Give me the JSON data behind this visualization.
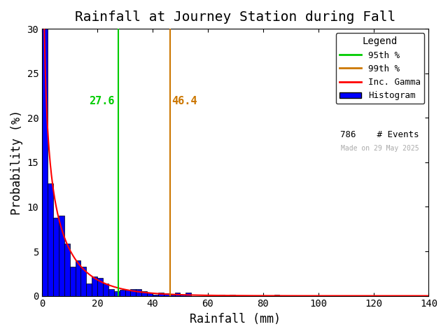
{
  "title": "Rainfall at Journey Station during Fall",
  "xlabel": "Rainfall (mm)",
  "ylabel": "Probability (%)",
  "xlim": [
    0,
    140
  ],
  "ylim": [
    0,
    30
  ],
  "xticks": [
    0,
    20,
    40,
    60,
    80,
    100,
    120,
    140
  ],
  "yticks": [
    0,
    5,
    10,
    15,
    20,
    25,
    30
  ],
  "pct95": 27.6,
  "pct99": 46.4,
  "pct95_color": "#00cc00",
  "pct99_color": "#cc7700",
  "gamma_color": "#ff0000",
  "hist_color": "#0000ff",
  "hist_edge_color": "#000000",
  "n_events": 786,
  "gamma_shape": 0.72,
  "gamma_scale": 9.5,
  "watermark": "Made on 29 May 2025",
  "watermark_color": "#aaaaaa",
  "legend_title": "Legend",
  "legend_entries": [
    "95th %",
    "99th %",
    "Inc. Gamma",
    "Histogram",
    "786    # Events"
  ],
  "background_color": "#ffffff",
  "title_fontsize": 14,
  "axis_fontsize": 12,
  "tick_fontsize": 10,
  "bin_width": 2,
  "bin_max": 140
}
